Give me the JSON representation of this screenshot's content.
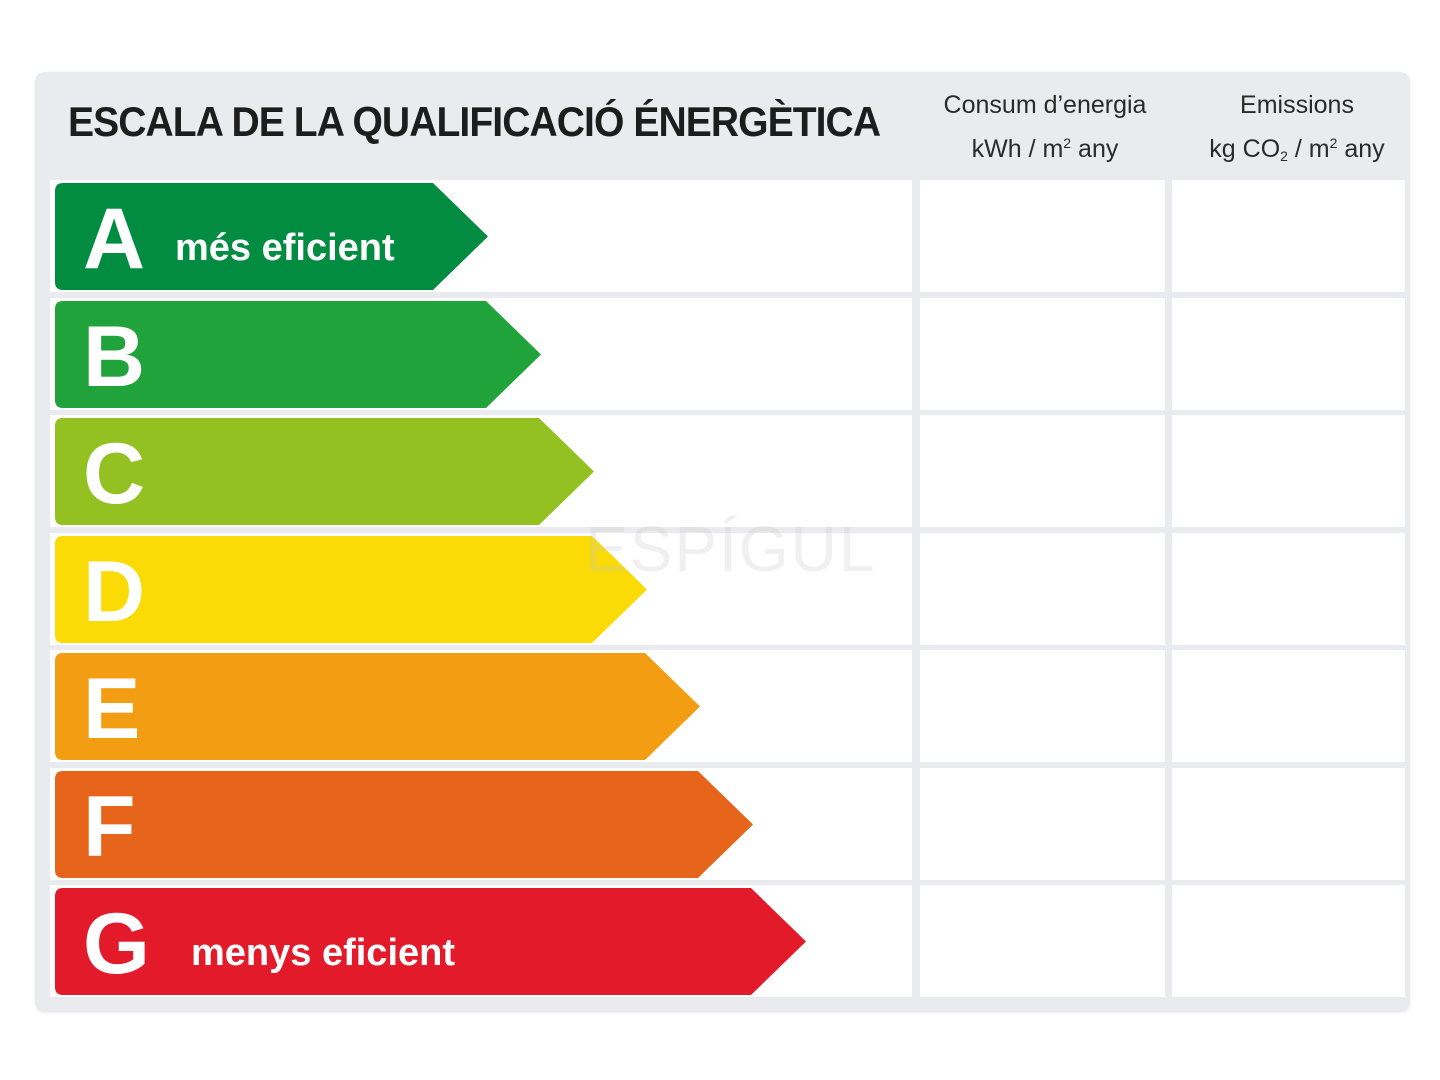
{
  "title": "ESCALA DE LA QUALIFICACIÓ ÉNERGÈTICA",
  "columns": {
    "energy": {
      "line1": "Consum d’energia",
      "line2_pre": "kWh / m",
      "line2_sup": "2",
      "line2_post": " any"
    },
    "emissions": {
      "line1": "Emissions",
      "line2_pre": "kg CO",
      "line2_sub": "2",
      "line2_mid": " / m",
      "line2_sup": "2",
      "line2_post": " any"
    }
  },
  "ratings": [
    {
      "letter": "A",
      "label": "més eficient",
      "color": "#028c42"
    },
    {
      "letter": "B",
      "label": "",
      "color": "#21a33b"
    },
    {
      "letter": "C",
      "label": "",
      "color": "#93c121"
    },
    {
      "letter": "D",
      "label": "",
      "color": "#fbdb05"
    },
    {
      "letter": "E",
      "label": "",
      "color": "#f39e12"
    },
    {
      "letter": "F",
      "label": "",
      "color": "#e7641b"
    },
    {
      "letter": "G",
      "label": "menys eficient",
      "color": "#e31a2a"
    }
  ],
  "watermark": "ESPÍGUL"
}
